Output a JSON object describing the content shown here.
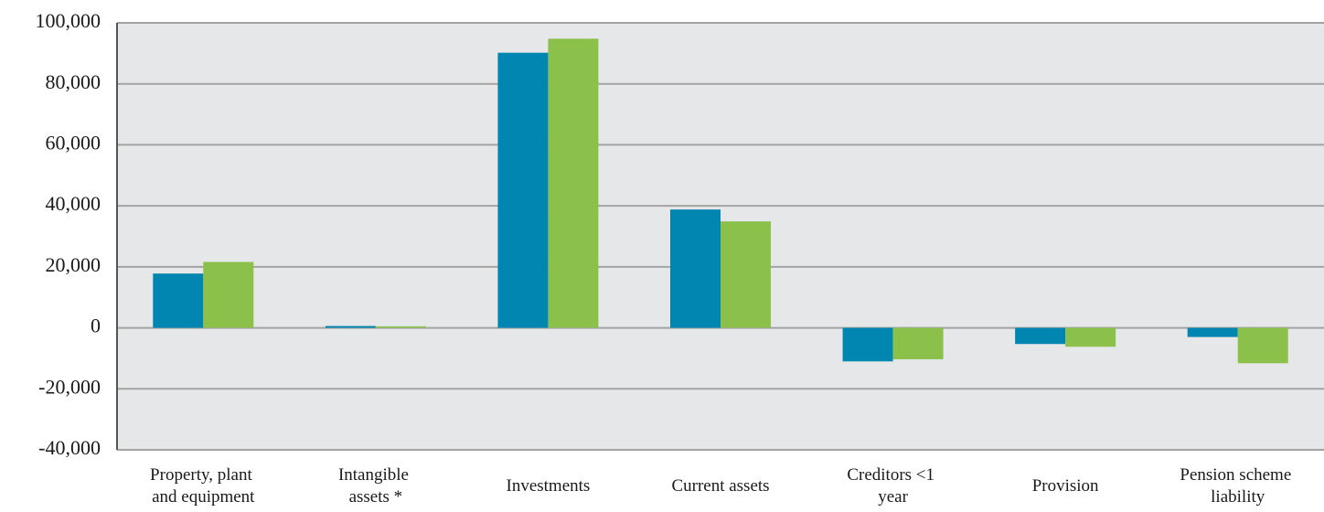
{
  "chart_data": {
    "type": "bar",
    "categories": [
      "Property, plant and equipment",
      "Intangible assets *",
      "Investments",
      "Current assets",
      "Creditors <1 year",
      "Provision",
      "Pension scheme liability"
    ],
    "series": [
      {
        "color": "#0086b0",
        "values": [
          17800,
          600,
          90200,
          38800,
          -11000,
          -5300,
          -3000
        ]
      },
      {
        "color": "#8bc04a",
        "values": [
          21600,
          500,
          94800,
          34900,
          -10300,
          -6200,
          -11600
        ]
      }
    ],
    "ylim": [
      -40000,
      100000
    ],
    "yticks": [
      {
        "value": -40000,
        "label": "-40,000"
      },
      {
        "value": -20000,
        "label": "-20,000"
      },
      0,
      {
        "value": 20000,
        "label": "20,000"
      },
      {
        "value": 40000,
        "label": "40,000"
      },
      {
        "value": 60000,
        "label": "60,000"
      },
      {
        "value": 80000,
        "label": "80,000"
      },
      {
        "value": 100000,
        "label": "100,000"
      }
    ],
    "grid": true
  }
}
